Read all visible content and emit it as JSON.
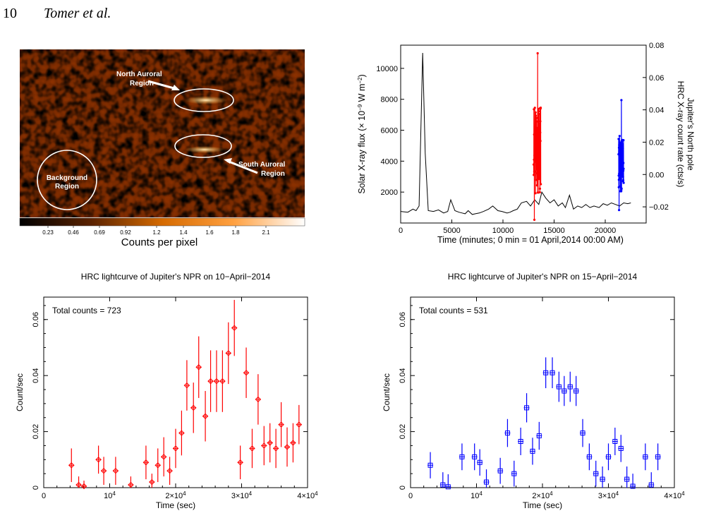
{
  "header": {
    "page_number": "10",
    "authors": "Tomer et al."
  },
  "image_panel": {
    "labels": {
      "north": [
        "North Auroral",
        "Region"
      ],
      "south": [
        "South Auroral",
        "Region"
      ],
      "background": [
        "Background",
        "Region"
      ]
    },
    "colorbar_ticks": [
      "0.23",
      "0.46",
      "0.69",
      "0.92",
      "1.2",
      "1.4",
      "1.6",
      "1.8",
      "2.1"
    ],
    "colorbar_label": "Counts per pixel"
  },
  "chart_data": [
    {
      "type": "line",
      "title": "",
      "xlabel": "Time (minutes; 0 min = 01 April,2014 00:00 AM)",
      "ylabel_left": "Solar X-ray flux (× 10",
      "ylabel_left_sup": "−9",
      "ylabel_left_tail": " W m",
      "ylabel_left_sup2": "−2",
      "ylabel_left_end": ")",
      "ylabel_right_1": "Jupiter's North pole",
      "ylabel_right_2": "HRC X-ray count rate (cts/s)",
      "xlim": [
        0,
        24000
      ],
      "ylim_left": [
        0,
        11500
      ],
      "ylim_right": [
        -0.03,
        0.08
      ],
      "x_ticks": [
        "0",
        "5000",
        "10000",
        "15000",
        "20000"
      ],
      "y_ticks_left": [
        "2000",
        "4000",
        "6000",
        "8000",
        "10000"
      ],
      "y_ticks_right": [
        "−0.02",
        "0.00",
        "0.02",
        "0.04",
        "0.06",
        "0.08"
      ],
      "series": [
        {
          "color": "#000000",
          "x": [
            0,
            700,
            1200,
            1500,
            1800,
            2150,
            2400,
            2700,
            3200,
            3700,
            4200,
            4600,
            4900,
            5300,
            5700,
            6000,
            6300,
            6600,
            7000,
            7300,
            7700,
            8100,
            8600,
            9000,
            9500,
            9900,
            10400,
            10700,
            11000,
            11400,
            11800,
            12300,
            12700,
            13100,
            13500,
            13800,
            14200,
            14600,
            15000,
            15400,
            15800,
            16100,
            16500,
            16900,
            17300,
            17700,
            18100,
            18500,
            18900,
            19400,
            19800,
            20200,
            20600,
            21000,
            21400,
            21800,
            22200,
            22500
          ],
          "y": [
            750,
            700,
            900,
            800,
            1100,
            11000,
            4500,
            800,
            750,
            850,
            650,
            750,
            1500,
            800,
            700,
            650,
            600,
            800,
            550,
            600,
            650,
            750,
            900,
            1100,
            800,
            750,
            650,
            700,
            800,
            900,
            1300,
            1400,
            1100,
            1500,
            1200,
            2000,
            1600,
            1300,
            1500,
            1100,
            1300,
            1000,
            1800,
            900,
            1100,
            1000,
            1200,
            1000,
            1100,
            1000,
            1250,
            1150,
            1300,
            1200,
            1100,
            1300,
            1250,
            1300
          ]
        },
        {
          "color": "#ff0000",
          "x_range": [
            13000,
            13700
          ],
          "y_range": [
            -0.028,
            0.075
          ]
        },
        {
          "color": "#0000ff",
          "x_range": [
            21300,
            21800
          ],
          "y_range": [
            -0.022,
            0.046
          ]
        }
      ]
    },
    {
      "type": "scatter",
      "title": "HRC lightcurve of Jupiter's NPR on 10−April−2014",
      "annotation": "Total counts = 723",
      "xlabel": "Time (sec)",
      "ylabel": "Count/sec",
      "xlim": [
        0,
        40000
      ],
      "ylim": [
        0,
        0.068
      ],
      "x_ticks": [
        {
          "v": 0,
          "label": "0"
        },
        {
          "v": 10000,
          "label": "10",
          "sup": "4"
        },
        {
          "v": 20000,
          "label": "2×10",
          "sup": "4"
        },
        {
          "v": 30000,
          "label": "3×10",
          "sup": "4"
        },
        {
          "v": 40000,
          "label": "4×10",
          "sup": "4"
        }
      ],
      "y_ticks": [
        {
          "v": 0,
          "label": "0"
        },
        {
          "v": 0.02,
          "label": "0.02"
        },
        {
          "v": 0.04,
          "label": "0.04"
        },
        {
          "v": 0.06,
          "label": "0.06"
        }
      ],
      "color": "#ff0000",
      "x": [
        4200,
        5300,
        6100,
        8300,
        9100,
        10900,
        13200,
        15500,
        16400,
        17300,
        18200,
        19100,
        20000,
        20900,
        21700,
        22700,
        23500,
        24500,
        25300,
        26200,
        27100,
        28000,
        28900,
        29800,
        30700,
        31600,
        32500,
        33400,
        34300,
        35200,
        36000,
        36900,
        37800,
        38700
      ],
      "y": [
        0.008,
        0.001,
        0.0005,
        0.01,
        0.006,
        0.006,
        0.001,
        0.009,
        0.002,
        0.008,
        0.011,
        0.006,
        0.014,
        0.0195,
        0.0365,
        0.0285,
        0.043,
        0.0255,
        0.038,
        0.038,
        0.038,
        0.048,
        0.057,
        0.009,
        0.041,
        0.014,
        0.0315,
        0.015,
        0.016,
        0.014,
        0.0225,
        0.0145,
        0.016,
        0.0225
      ],
      "yerr": [
        0.006,
        0.003,
        0.002,
        0.005,
        0.005,
        0.005,
        0.003,
        0.006,
        0.003,
        0.006,
        0.007,
        0.005,
        0.007,
        0.008,
        0.009,
        0.009,
        0.011,
        0.009,
        0.011,
        0.011,
        0.011,
        0.011,
        0.01,
        0.006,
        0.009,
        0.007,
        0.009,
        0.007,
        0.007,
        0.007,
        0.008,
        0.007,
        0.007,
        0.007
      ]
    },
    {
      "type": "scatter",
      "title": "HRC lightcurve of Jupiter's NPR on 15−April−2014",
      "annotation": "Total counts = 531",
      "xlabel": "Time (sec)",
      "ylabel": "Count/sec",
      "xlim": [
        0,
        40000
      ],
      "ylim": [
        0,
        0.068
      ],
      "x_ticks": [
        {
          "v": 0,
          "label": "0"
        },
        {
          "v": 10000,
          "label": "10",
          "sup": "4"
        },
        {
          "v": 20000,
          "label": "2×10",
          "sup": "4"
        },
        {
          "v": 30000,
          "label": "3×10",
          "sup": "4"
        },
        {
          "v": 40000,
          "label": "4×10",
          "sup": "4"
        }
      ],
      "y_ticks": [
        {
          "v": 0,
          "label": "0"
        },
        {
          "v": 0.02,
          "label": "0.02"
        },
        {
          "v": 0.04,
          "label": "0.04"
        },
        {
          "v": 0.06,
          "label": "0.06"
        }
      ],
      "color": "#0000ff",
      "x": [
        3000,
        4900,
        5700,
        7800,
        9700,
        10500,
        11500,
        13600,
        14700,
        15700,
        16700,
        17600,
        18500,
        19500,
        20500,
        21500,
        22500,
        23300,
        24200,
        25100,
        26100,
        27100,
        28100,
        29100,
        30000,
        31000,
        31900,
        32800,
        33700,
        35600,
        36500,
        37500
      ],
      "y": [
        0.008,
        0.001,
        0.0003,
        0.011,
        0.011,
        0.009,
        0.002,
        0.006,
        0.0195,
        0.005,
        0.0165,
        0.0285,
        0.013,
        0.0185,
        0.041,
        0.041,
        0.036,
        0.0345,
        0.036,
        0.0345,
        0.0195,
        0.011,
        0.005,
        0.003,
        0.011,
        0.0165,
        0.014,
        0.003,
        0.0005,
        0.011,
        0.001,
        0.011
      ]
    }
  ]
}
